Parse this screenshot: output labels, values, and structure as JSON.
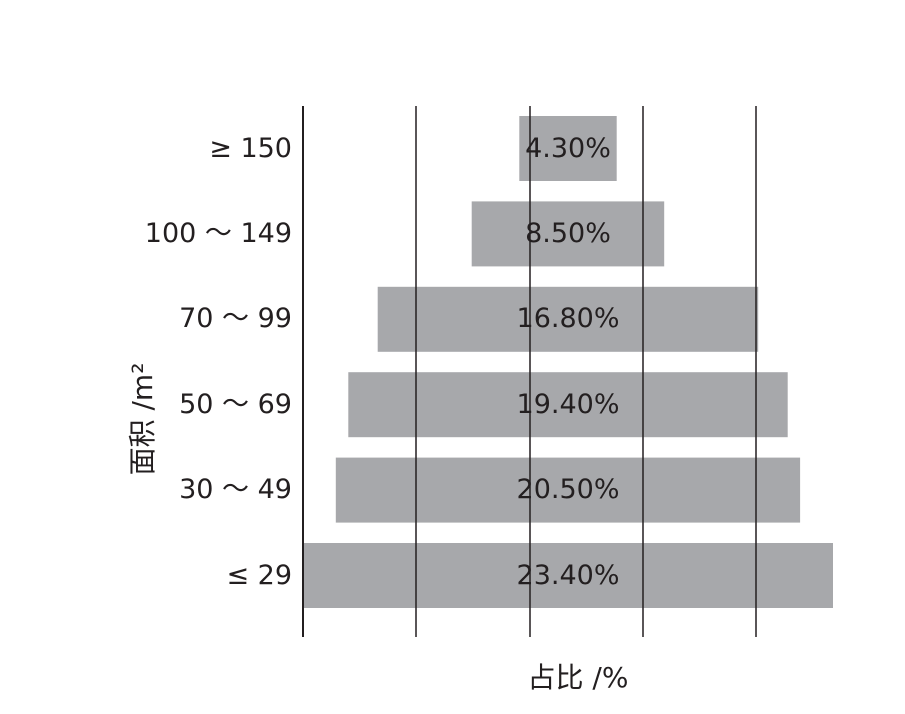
{
  "chart_data": {
    "type": "bar",
    "orientation": "horizontal",
    "centered": true,
    "categories": [
      "≥ 150",
      "100 ～ 149",
      "70 ～ 99",
      "50 ～ 69",
      "30 ～ 49",
      "≤ 29"
    ],
    "values": [
      4.3,
      8.5,
      16.8,
      19.4,
      20.5,
      23.4
    ],
    "value_labels": [
      "4.30%",
      "8.50%",
      "16.80%",
      "19.40%",
      "20.50%",
      "23.40%"
    ],
    "title": "",
    "xlabel": "占比 /%",
    "ylabel": "面积 /m²",
    "grid": true,
    "bar_color": "#a7a8ab",
    "grid_color": "#231f20"
  }
}
